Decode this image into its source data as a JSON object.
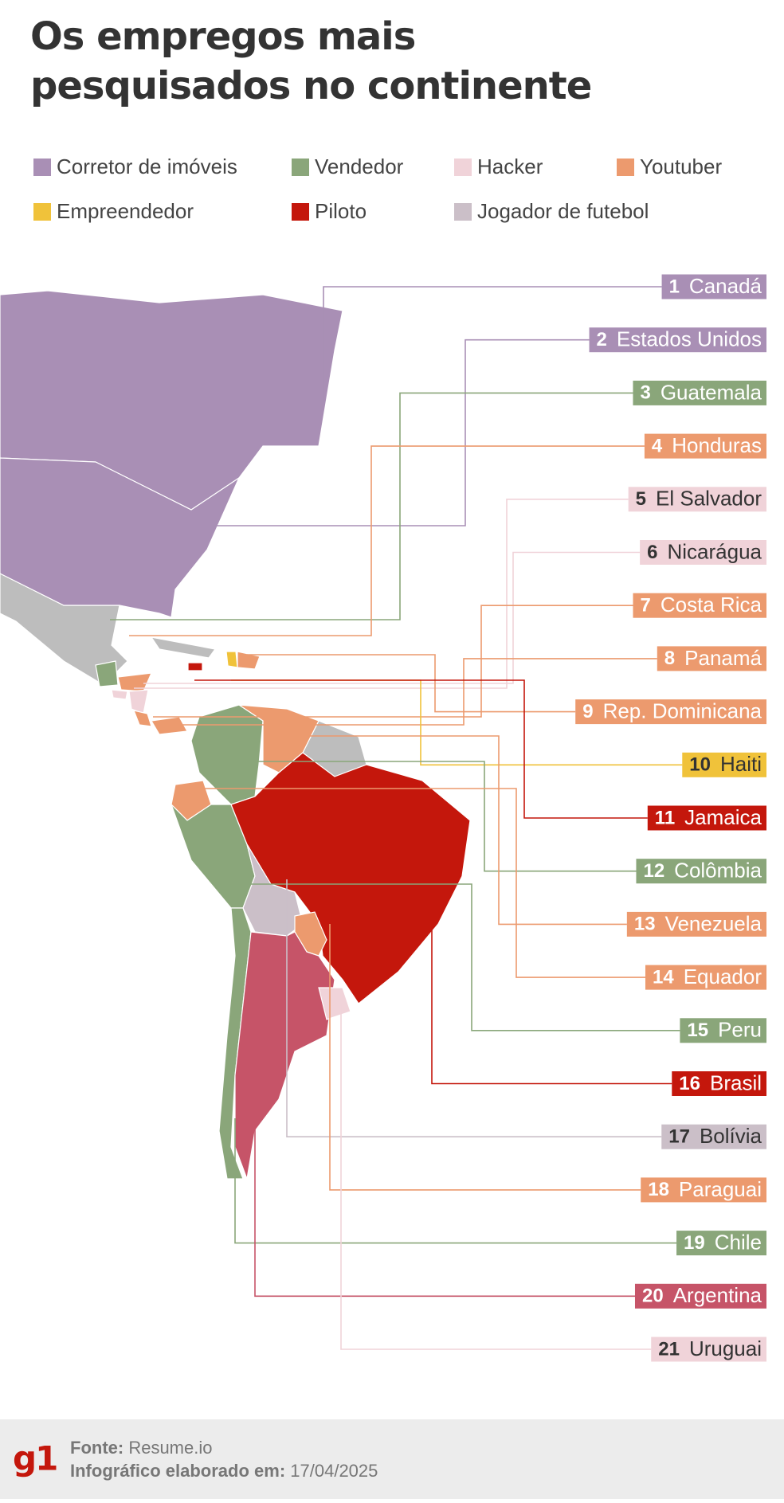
{
  "header": {
    "title_lines": [
      "Os empregos mais",
      "pesquisados no continente"
    ]
  },
  "legend": [
    {
      "name": "Corretor de imóveis",
      "color": "#a98fb5"
    },
    {
      "name": "Vendedor",
      "color": "#8aa67a"
    },
    {
      "name": "Hacker",
      "color": "#f0d3d9"
    },
    {
      "name": "Youtuber",
      "color": "#ec9a6e"
    },
    {
      "name": "Empreendedor",
      "color": "#f0c23a"
    },
    {
      "name": "Piloto",
      "color": "#c4170c"
    },
    {
      "name": "Jogador de futebol",
      "color": "#cbbfc8"
    }
  ],
  "countries": [
    {
      "rank": 1,
      "name": "Canadá",
      "color": "#a98fb5"
    },
    {
      "rank": 2,
      "name": "Estados Unidos",
      "color": "#a98fb5"
    },
    {
      "rank": 3,
      "name": "Guatemala",
      "color": "#8aa67a"
    },
    {
      "rank": 4,
      "name": "Honduras",
      "color": "#ec9a6e"
    },
    {
      "rank": 5,
      "name": "El Salvador",
      "color": "#f0d3d9"
    },
    {
      "rank": 6,
      "name": "Nicarágua",
      "color": "#f0d3d9"
    },
    {
      "rank": 7,
      "name": "Costa Rica",
      "color": "#ec9a6e"
    },
    {
      "rank": 8,
      "name": "Panamá",
      "color": "#ec9a6e"
    },
    {
      "rank": 9,
      "name": "Rep. Dominicana",
      "color": "#ec9a6e"
    },
    {
      "rank": 10,
      "name": "Haiti",
      "color": "#f0c23a"
    },
    {
      "rank": 11,
      "name": "Jamaica",
      "color": "#c4170c"
    },
    {
      "rank": 12,
      "name": "Colômbia",
      "color": "#8aa67a"
    },
    {
      "rank": 13,
      "name": "Venezuela",
      "color": "#ec9a6e"
    },
    {
      "rank": 14,
      "name": "Equador",
      "color": "#ec9a6e"
    },
    {
      "rank": 15,
      "name": "Peru",
      "color": "#8aa67a"
    },
    {
      "rank": 16,
      "name": "Brasil",
      "color": "#c4170c"
    },
    {
      "rank": 17,
      "name": "Bolívia",
      "color": "#cbbfc8"
    },
    {
      "rank": 18,
      "name": "Paraguai",
      "color": "#ec9a6e"
    },
    {
      "rank": 19,
      "name": "Chile",
      "color": "#8aa67a"
    },
    {
      "rank": 20,
      "name": "Argentina",
      "color": "#c65468"
    },
    {
      "rank": 21,
      "name": "Uruguai",
      "color": "#f0d3d9"
    }
  ],
  "footer": {
    "logo": "g1",
    "source_label": "Fonte:",
    "source": "Resume.io",
    "date_label": "Infográfico elaborado em:",
    "date": "17/04/2025"
  }
}
